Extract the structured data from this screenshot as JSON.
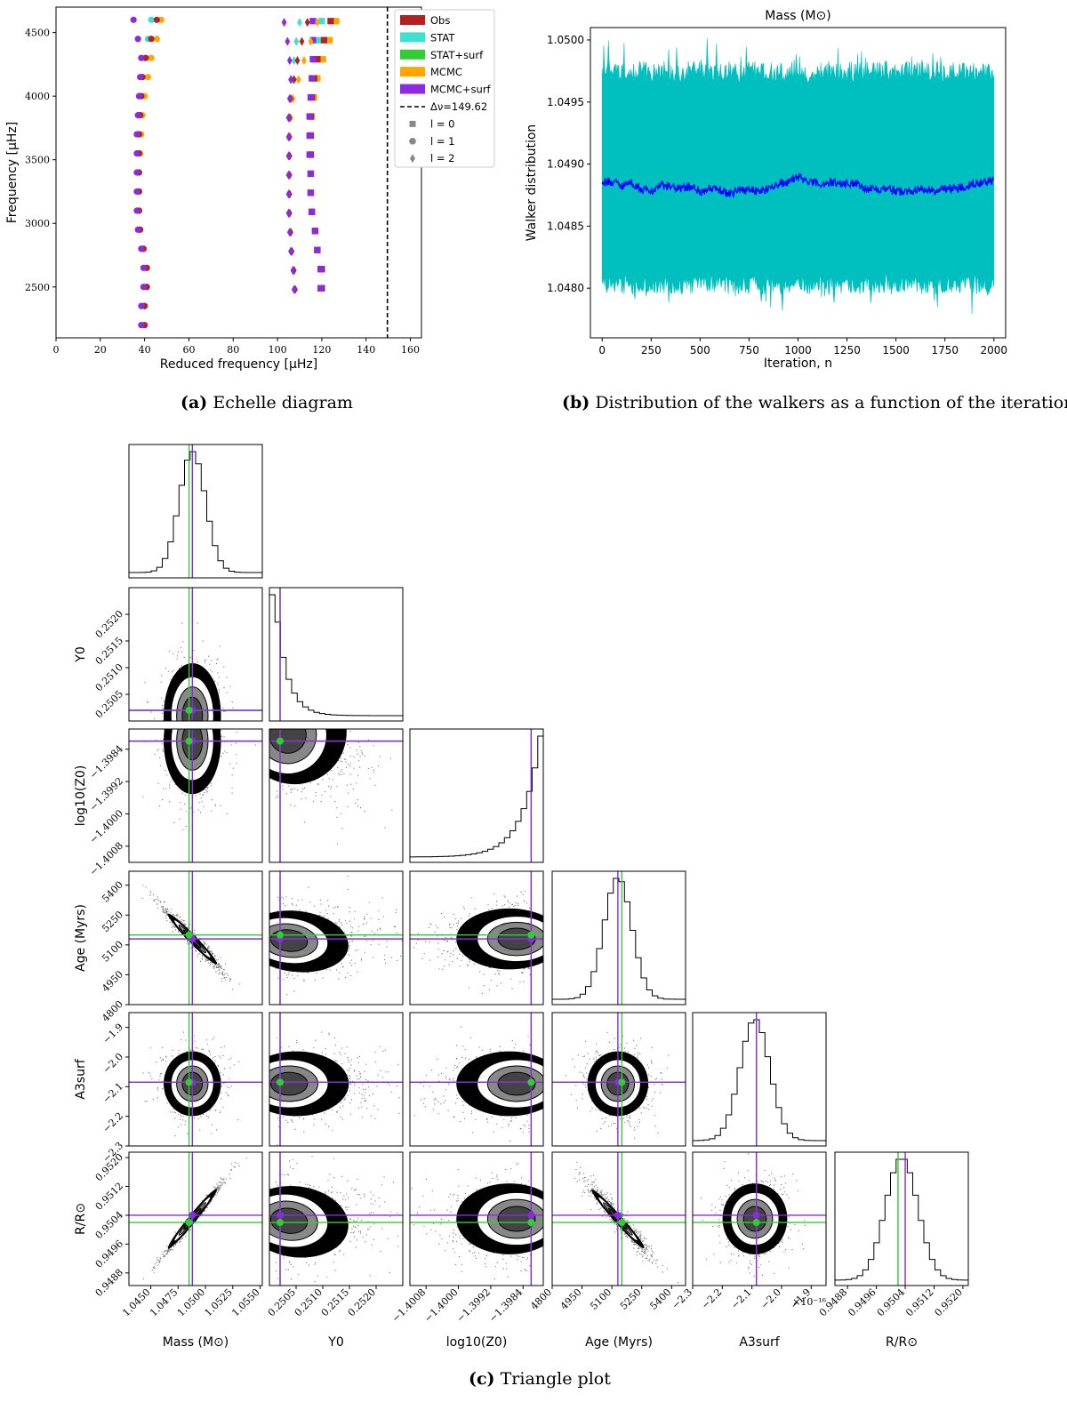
{
  "captions": {
    "a_label": "(a)",
    "a_text": "Echelle diagram",
    "b_label": "(b)",
    "b_text": "Distribution of the walkers as a function of the iteration",
    "c_label": "(c)",
    "c_text": "Triangle plot"
  },
  "colors": {
    "obs": "#b22222",
    "stat": "#40e0d0",
    "stat_surf": "#32cd32",
    "mcmc": "#ffa500",
    "mcmc_surf": "#8a2be2",
    "walker_band": "#00bfbf",
    "walker_line": "#0000ff",
    "corner_green": "#32cd32",
    "corner_purple": "#8a2be2"
  },
  "chart_data": [
    {
      "type": "scatter",
      "title": "",
      "xlabel": "Reduced frequency [μHz]",
      "ylabel": "Frequency [μHz]",
      "xlim": [
        0,
        165
      ],
      "ylim": [
        2100,
        4700
      ],
      "xticks": [
        "0",
        "20",
        "40",
        "60",
        "80",
        "100",
        "120",
        "140",
        "160"
      ],
      "yticks": [
        "2500",
        "3000",
        "3500",
        "4000",
        "4500"
      ],
      "legend_position": "outside-right",
      "legend": [
        "Obs",
        "STAT",
        "STAT+surf",
        "MCMC",
        "MCMC+surf",
        "Δν=149.62",
        "l = 0",
        "l = 1",
        "l = 2"
      ],
      "delta_nu": 149.62,
      "series": [
        {
          "name": "l = 1",
          "marker": "circle",
          "freq": [
            2200,
            2350,
            2500,
            2650,
            2800,
            2950,
            3100,
            3250,
            3400,
            3550,
            3700,
            3850,
            4000,
            4150,
            4300,
            4450,
            4600
          ],
          "obs": [
            40,
            40,
            41,
            41,
            39.5,
            38,
            37.5,
            37.5,
            37.5,
            37.5,
            37.5,
            38,
            38.5,
            39,
            40.5,
            43,
            45.5
          ],
          "stat": [
            39,
            39,
            40,
            40,
            39,
            37.5,
            37,
            37,
            37,
            37,
            37,
            37.5,
            38,
            39,
            40,
            41.5,
            43
          ],
          "mcmc": [
            40,
            40,
            41,
            41,
            39.5,
            38,
            37.5,
            37.5,
            37.5,
            38,
            38.5,
            39,
            40,
            41.5,
            43,
            45.5,
            47.5
          ],
          "mcmc_surf": [
            38.5,
            38.5,
            39.5,
            39.5,
            38.5,
            37,
            36.5,
            36.5,
            36.5,
            36.5,
            36.5,
            37,
            37.5,
            38,
            38.5,
            37,
            35
          ]
        },
        {
          "name": "l = 0",
          "marker": "square",
          "freq": [
            2490,
            2640,
            2790,
            2940,
            3090,
            3240,
            3390,
            3540,
            3690,
            3840,
            3990,
            4140,
            4290,
            4440,
            4590
          ],
          "obs": [
            120,
            120,
            118,
            117,
            115.5,
            115,
            115,
            115,
            115,
            115,
            115.5,
            116.5,
            118,
            121,
            124
          ],
          "stat": [
            119.5,
            119.5,
            118,
            117,
            115.5,
            115,
            115,
            115,
            115,
            115,
            115.5,
            116,
            117,
            118.5,
            120
          ],
          "mcmc": [
            120,
            120,
            118,
            117,
            115.5,
            115,
            115,
            115,
            115,
            115.5,
            116.5,
            118,
            120.5,
            123.5,
            126.5
          ],
          "mcmc_surf": [
            119.5,
            119.5,
            118,
            117,
            115.5,
            115,
            115,
            114.5,
            114.5,
            114.5,
            115,
            115.5,
            116,
            116,
            116
          ]
        },
        {
          "name": "l = 2",
          "marker": "diamond",
          "freq": [
            2480,
            2630,
            2780,
            2930,
            3080,
            3230,
            3380,
            3530,
            3680,
            3830,
            3980,
            4130,
            4280,
            4430,
            4580
          ],
          "obs": [
            108,
            107.5,
            106.5,
            106,
            105.5,
            105.5,
            105.5,
            105.5,
            105.5,
            105.5,
            106,
            107.5,
            109,
            111,
            113.5
          ],
          "stat": [
            107.5,
            107,
            106,
            105.5,
            105,
            105,
            105,
            105,
            105,
            105,
            105.5,
            106.5,
            107.5,
            108.5,
            110
          ],
          "mcmc": [
            108,
            107.5,
            106.5,
            106,
            105.5,
            105.5,
            105.5,
            105.5,
            105.5,
            106,
            107,
            109.5,
            112,
            115,
            118
          ],
          "mcmc_surf": [
            107.5,
            107,
            106,
            105.5,
            105,
            105,
            105,
            105,
            105,
            105,
            105.5,
            106,
            105.5,
            104.5,
            103
          ]
        }
      ]
    },
    {
      "type": "area",
      "title": "Mass (M⊙)",
      "xlabel": "Iteration, n",
      "ylabel": "Walker distribution",
      "xlim": [
        -60,
        2060
      ],
      "ylim": [
        1.0476,
        1.0501
      ],
      "xticks": [
        "0",
        "250",
        "500",
        "750",
        "1000",
        "1250",
        "1500",
        "1750",
        "2000"
      ],
      "yticks": [
        "1.0480",
        "1.0485",
        "1.0490",
        "1.0495",
        "1.0500"
      ],
      "band_upper_mean": 1.04974,
      "band_lower_mean": 1.04803,
      "median_series": {
        "x": [
          0,
          50,
          100,
          150,
          200,
          250,
          300,
          350,
          400,
          450,
          500,
          550,
          600,
          650,
          700,
          750,
          800,
          850,
          900,
          950,
          1000,
          1050,
          1100,
          1150,
          1200,
          1250,
          1300,
          1350,
          1400,
          1450,
          1500,
          1550,
          1600,
          1650,
          1700,
          1750,
          1800,
          1850,
          1900,
          1950,
          2000
        ],
        "y": [
          1.04885,
          1.04886,
          1.04883,
          1.04885,
          1.0488,
          1.04878,
          1.04883,
          1.04882,
          1.0488,
          1.04882,
          1.04878,
          1.0488,
          1.04879,
          1.04876,
          1.04879,
          1.0488,
          1.04878,
          1.0488,
          1.04884,
          1.04885,
          1.0489,
          1.04886,
          1.04884,
          1.04885,
          1.04885,
          1.04884,
          1.04885,
          1.0488,
          1.0488,
          1.04881,
          1.04878,
          1.04878,
          1.04879,
          1.0488,
          1.04878,
          1.04881,
          1.0488,
          1.04882,
          1.04885,
          1.04885,
          1.04887
        ]
      }
    },
    {
      "type": "scatter",
      "title": "",
      "parameters": [
        "Mass (M⊙)",
        "Y0",
        "log10(Z0)",
        "Age (Myrs)",
        "A3surf",
        "R/R⊙"
      ],
      "row_labels": [
        "",
        "Y0",
        "log10(Z0)",
        "Age (Myrs)",
        "A3surf",
        "R/R⊙"
      ],
      "ranges": [
        [
          1.043,
          1.0552
        ],
        [
          0.25,
          0.2525
        ],
        [
          -1.4012,
          -1.3979
        ],
        [
          4800,
          5470
        ],
        [
          -2.3,
          -1.85
        ],
        [
          0.94845,
          0.95215
        ]
      ],
      "means": [
        1.0488,
        0.2501,
        -1.3982,
        5130,
        -2.09,
        0.9503
      ],
      "sigmas": [
        0.0012,
        0.00045,
        0.0006,
        70,
        0.05,
        0.00045
      ],
      "markers_green": [
        1.0485,
        0.2502,
        -1.3982,
        5150,
        -2.085,
        0.9502
      ],
      "markers_purple": [
        1.0488,
        0.2502,
        -1.3982,
        5130,
        -2.085,
        0.9504
      ],
      "xticks": [
        [
          "1.0450",
          "1.0475",
          "1.0500",
          "1.0525",
          "1.0550"
        ],
        [
          "0.2505",
          "0.2510",
          "0.2515",
          "0.2520"
        ],
        [
          "−1.4008",
          "−1.4000",
          "−1.3992",
          "−1.3984"
        ],
        [
          "4800",
          "4950",
          "5100",
          "5250",
          "5400"
        ],
        [
          "−2.3",
          "−2.2",
          "−2.1",
          "−2.0",
          "−1.9"
        ],
        [
          "0.9488",
          "0.9496",
          "0.9504",
          "0.9512",
          "0.9520"
        ]
      ],
      "yticks": [
        [],
        [
          "0.2505",
          "0.2510",
          "0.2515",
          "0.2520"
        ],
        [
          "−1.4008",
          "−1.4000",
          "−1.3992",
          "−1.3984"
        ],
        [
          "4800",
          "4950",
          "5100",
          "5250",
          "5400"
        ],
        [
          "−2.3",
          "−2.2",
          "−2.1",
          "−2.0",
          "−1.9"
        ],
        [
          "0.9488",
          "0.9496",
          "0.9504",
          "0.9512",
          "0.9520"
        ]
      ],
      "scale_note": "×10⁻¹⁶"
    }
  ]
}
